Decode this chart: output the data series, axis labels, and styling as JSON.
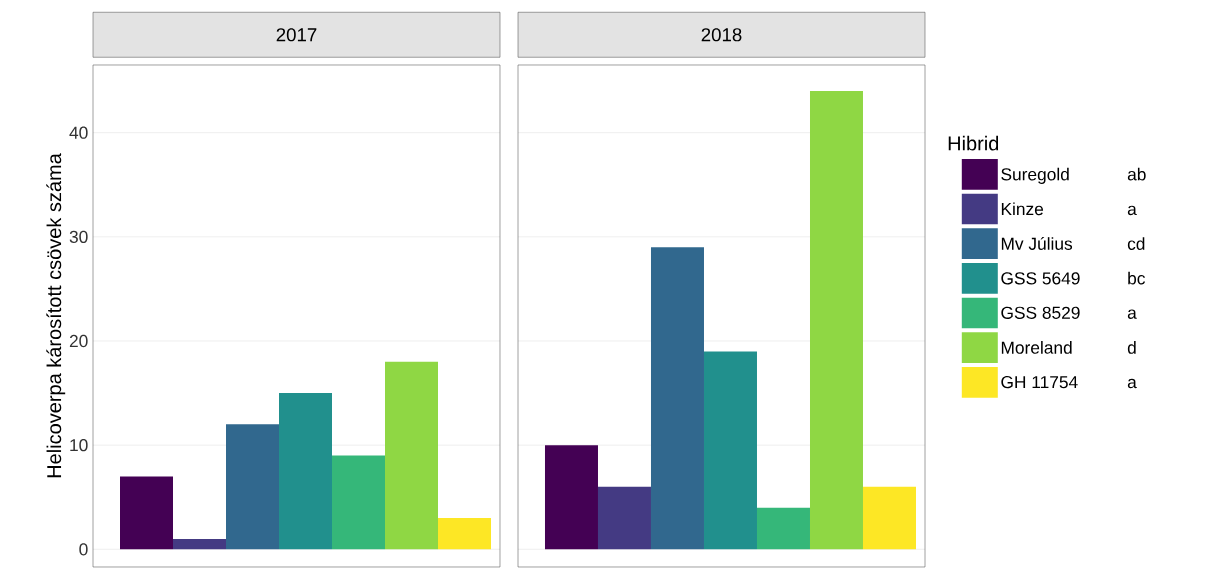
{
  "chart_data": {
    "type": "bar",
    "ylabel": "Helicoverpa károsított csövek száma",
    "categories": [
      "2017",
      "2018"
    ],
    "ylim": [
      -1.7,
      46.5
    ],
    "yticks": [
      0,
      10,
      20,
      30,
      40
    ],
    "grid": true,
    "legend": "right",
    "legend_title": "Hibrid",
    "annotations": [
      "ab",
      "a",
      "cd",
      "bc",
      "a",
      "d",
      "a"
    ],
    "series": [
      {
        "name": "Suregold",
        "color": "#440154",
        "values": [
          7,
          10
        ]
      },
      {
        "name": "Kinze",
        "color": "#443a83",
        "values": [
          1,
          6
        ]
      },
      {
        "name": "Mv Július",
        "color": "#31688e",
        "values": [
          12,
          29
        ]
      },
      {
        "name": "GSS 5649",
        "color": "#21908d",
        "values": [
          15,
          19
        ]
      },
      {
        "name": "GSS 8529",
        "color": "#35b779",
        "values": [
          9,
          4
        ]
      },
      {
        "name": "Moreland",
        "color": "#8fd744",
        "values": [
          18,
          44
        ]
      },
      {
        "name": "GH 11754",
        "color": "#fde725",
        "values": [
          3,
          6
        ]
      }
    ]
  }
}
